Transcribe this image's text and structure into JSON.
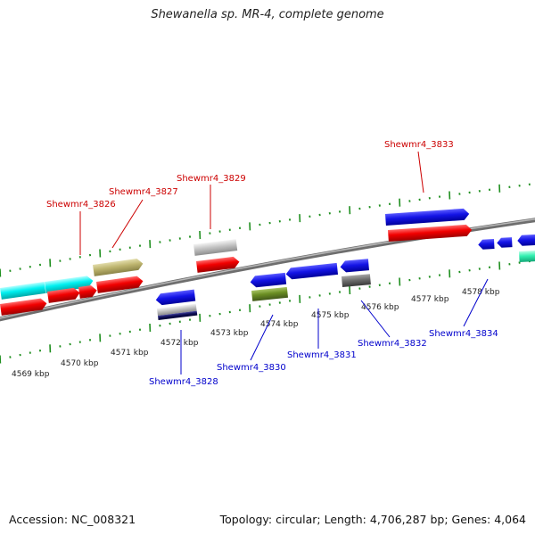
{
  "title": "Shewanella sp. MR-4, complete genome",
  "footer": {
    "accession": "Accession: NC_008321",
    "topology": "Topology: circular; Length: 4,706,287 bp; Genes: 4,064"
  },
  "colors": {
    "forward_label": "#cc0000",
    "reverse_label": "#0000cc",
    "backbone": "#8c8c8c",
    "tick": "#1f8f1f"
  },
  "kbp_labels": [
    "4569 kbp",
    "4570 kbp",
    "4571 kbp",
    "4572 kbp",
    "4573 kbp",
    "4574 kbp",
    "4575 kbp",
    "4576 kbp",
    "4577 kbp",
    "4578 kbp"
  ],
  "gene_labels": {
    "forward": [
      "Shewmr4_3826",
      "Shewmr4_3827",
      "Shewmr4_3829",
      "Shewmr4_3833"
    ],
    "reverse": [
      "Shewmr4_3828",
      "Shewmr4_3830",
      "Shewmr4_3831",
      "Shewmr4_3832",
      "Shewmr4_3834"
    ]
  }
}
